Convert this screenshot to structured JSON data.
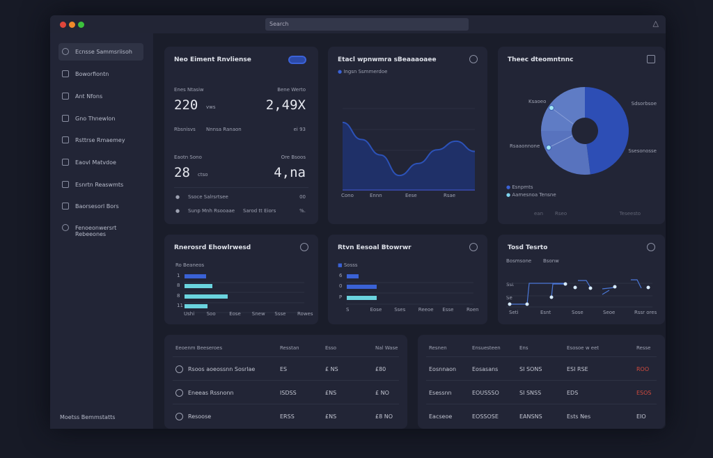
{
  "window": {
    "search_placeholder": "Search",
    "traffic_colors": [
      "#e0463b",
      "#f08a2a",
      "#3cc23c"
    ],
    "bell_icon": "bell-icon"
  },
  "sidebar": {
    "items": [
      {
        "label": "Ecnsse Sammsriisoh",
        "icon": "circle-icon"
      },
      {
        "label": "Boworfiontn",
        "icon": "chart-icon"
      },
      {
        "label": "Ant Nfons",
        "icon": "grid-icon"
      },
      {
        "label": "Gno Thnewlon",
        "icon": "doc-icon"
      },
      {
        "label": "Rsttrse Rmaemey",
        "icon": "box-icon"
      },
      {
        "label": "Eaovl Matvdoe",
        "icon": "box-icon"
      },
      {
        "label": "Esnrtn Reaswmts",
        "icon": "box-icon"
      },
      {
        "label": "Baorsesorl Bors",
        "icon": "list-icon"
      },
      {
        "label": "Fenoeonwersrt Rebeeones",
        "icon": "gear-icon"
      }
    ],
    "footer": "Moetss Bemmstatts"
  },
  "summary": {
    "title": "Neo Eiment Rnvliense",
    "stats": [
      {
        "label": "Enes Ntasiw",
        "value": "220",
        "unit": "vws",
        "right_label": "Bene Werto",
        "right_value": "2,49X"
      },
      {
        "label": "Eaotn Sono",
        "value": "28",
        "unit": "ctso",
        "right_label": "Ore Bsoos",
        "right_value": "4,na"
      }
    ],
    "sub": [
      "Rbsnisvs",
      "Nnnsa Ranaon",
      "ei 93"
    ],
    "rows": [
      {
        "label": "Ssoce Salrsrtsee",
        "value": "00"
      },
      {
        "label": "Sunp Mnh Rsooaae",
        "extra": "Sarod tt Eiors",
        "value": "%."
      }
    ]
  },
  "area": {
    "title": "Etacl wpnwmra sBeaaaoaee",
    "legend": "Ingsn Ssmmerdoe",
    "x_ticks": [
      "Cono",
      "Ennn",
      "Eese",
      "Rsae"
    ],
    "values": [
      79,
      59,
      41,
      17,
      31,
      47,
      57,
      45
    ],
    "color": "#2c52b8"
  },
  "donut": {
    "title": "Theec dteomntnnc",
    "labels": [
      "Ksaoeo",
      "Rsaaonnone",
      "Sdsorbsoe",
      "Ssesonosse"
    ],
    "legend": [
      "Esnpmts",
      "Aamesnoa Tensne"
    ],
    "footer": [
      "ean",
      "Rseo",
      "Teseesto"
    ],
    "slices": [
      {
        "value": 48,
        "color": "#2d4eb5"
      },
      {
        "value": 27,
        "color": "#5873be"
      },
      {
        "value": 25,
        "color": "#5f7cc5"
      }
    ]
  },
  "bars1": {
    "title": "Rnerosrd Ehowlrwesd",
    "legend": "Ro Beaneos",
    "y_labels": [
      "1",
      "8",
      "8",
      "11"
    ],
    "x_ticks": [
      "Ushi",
      "Soo",
      "Eose",
      "Snew",
      "Ssse",
      "Rowes"
    ],
    "values": [
      31,
      40,
      62,
      33
    ],
    "colors": [
      "#3a62d6",
      "#6ad3de",
      "#6ad3de",
      "#6ad3de"
    ]
  },
  "bars2": {
    "title": "Rtvn Eesoal Btowrwr",
    "legend": "Sosss",
    "y_labels": [
      "6",
      "0",
      "P"
    ],
    "x_ticks": [
      "S",
      "Eose",
      "Sses",
      "Reeoe",
      "Esse",
      "Roen"
    ],
    "values": [
      17,
      43,
      43
    ],
    "colors": [
      "#3a62d6",
      "#3a62d6",
      "#6ad3de"
    ]
  },
  "step": {
    "title": "Tosd Tesrto",
    "legend": [
      "Bosmsone",
      "Bsonw"
    ],
    "y_labels": [
      "Sst",
      "Se"
    ],
    "x_ticks": [
      "Seti",
      "Esnt",
      "Sose",
      "Seoe",
      "Rssr ores"
    ]
  },
  "table1": {
    "headers": [
      "Eeoenm Beeseroes",
      "Resstan",
      "Esso",
      "Nal Wase"
    ],
    "rows": [
      {
        "icon": "clock-icon",
        "cells": [
          "Rsoos aoeossnn Sosrlae",
          "ES",
          "£ NS",
          "£80"
        ]
      },
      {
        "icon": "refresh-icon",
        "cells": [
          "Eneeas Rssnonn",
          "ISDSS",
          "£NS",
          "£ NO"
        ]
      },
      {
        "icon": "alert-icon",
        "cells": [
          "Resoose",
          "ERSS",
          "£NS",
          "£8 NO"
        ]
      }
    ]
  },
  "table2": {
    "headers": [
      "Resnen",
      "Ensuesteen",
      "Ens",
      "Esosoe w eet",
      "Resse"
    ],
    "rows": [
      [
        "Eosnnaon",
        "Eosasans",
        "SI SONS",
        "ESI RSE",
        "ROO"
      ],
      [
        "Esessnn",
        "EOUSSSO",
        "SI SNSS",
        "EDS",
        "ESOS"
      ],
      [
        "Eacseoe",
        "EOSSOSE",
        "EANSNS",
        "Ests Nes",
        "EIO"
      ]
    ],
    "accent": "#d24b3e"
  }
}
